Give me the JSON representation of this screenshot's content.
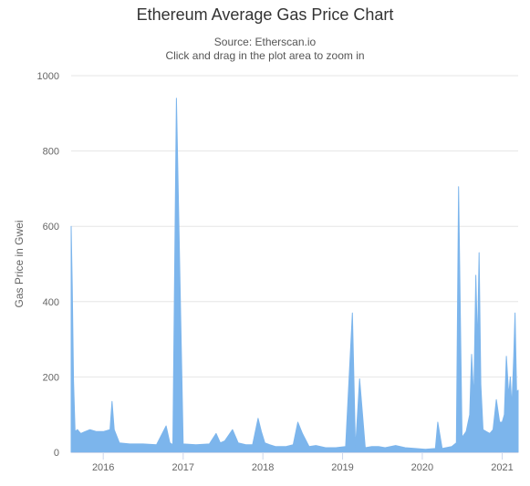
{
  "chart_data": {
    "type": "area",
    "title": "Ethereum Average Gas Price Chart",
    "subtitle": [
      "Source: Etherscan.io",
      "Click and drag in the plot area to zoom in"
    ],
    "xlabel": "",
    "ylabel": "Gas Price in Gwei",
    "ylim": [
      0,
      1000
    ],
    "yticks": [
      0,
      200,
      400,
      600,
      800,
      1000
    ],
    "xlim": [
      "2015-08-07",
      "2021-03-15"
    ],
    "xticks": [
      "2016",
      "2017",
      "2018",
      "2019",
      "2020",
      "2021"
    ],
    "grid": true,
    "legend": "none",
    "color": "#7cb5ec",
    "series": [
      {
        "x": [
          "2015-08-07",
          "2015-08-12",
          "2015-08-18",
          "2015-08-25",
          "2015-09-05",
          "2015-09-20",
          "2015-10-10",
          "2015-11-01",
          "2015-12-01",
          "2016-01-01",
          "2016-02-01",
          "2016-02-10",
          "2016-02-20",
          "2016-03-15",
          "2016-05-01",
          "2016-07-01",
          "2016-09-01",
          "2016-10-15",
          "2016-11-01",
          "2016-11-15",
          "2016-12-01",
          "2017-01-01",
          "2017-03-01",
          "2017-05-01",
          "2017-06-01",
          "2017-06-20",
          "2017-07-10",
          "2017-08-15",
          "2017-09-10",
          "2017-10-15",
          "2017-11-15",
          "2017-12-10",
          "2017-12-25",
          "2018-01-10",
          "2018-02-01",
          "2018-03-01",
          "2018-04-15",
          "2018-05-20",
          "2018-06-10",
          "2018-07-01",
          "2018-08-01",
          "2018-09-01",
          "2018-10-15",
          "2018-12-01",
          "2019-01-15",
          "2019-02-15",
          "2019-03-01",
          "2019-03-20",
          "2019-04-15",
          "2019-05-15",
          "2019-06-15",
          "2019-07-15",
          "2019-09-01",
          "2019-10-15",
          "2019-12-01",
          "2020-01-15",
          "2020-03-01",
          "2020-03-12",
          "2020-04-01",
          "2020-05-15",
          "2020-06-05",
          "2020-06-15",
          "2020-07-01",
          "2020-07-20",
          "2020-08-05",
          "2020-08-14",
          "2020-08-24",
          "2020-09-02",
          "2020-09-10",
          "2020-09-17",
          "2020-09-25",
          "2020-10-05",
          "2020-10-20",
          "2020-11-05",
          "2020-11-20",
          "2020-12-05",
          "2020-12-20",
          "2021-01-01",
          "2021-01-11",
          "2021-01-20",
          "2021-01-31",
          "2021-02-07",
          "2021-02-14",
          "2021-02-23",
          "2021-03-01",
          "2021-03-08",
          "2021-03-15"
        ],
        "y": [
          600,
          440,
          190,
          55,
          60,
          50,
          55,
          60,
          55,
          55,
          60,
          135,
          60,
          25,
          22,
          22,
          20,
          70,
          25,
          20,
          940,
          22,
          20,
          22,
          50,
          25,
          30,
          60,
          25,
          20,
          20,
          90,
          55,
          25,
          20,
          15,
          15,
          20,
          80,
          50,
          15,
          18,
          12,
          12,
          15,
          370,
          10,
          195,
          12,
          15,
          15,
          12,
          18,
          12,
          10,
          8,
          10,
          80,
          10,
          15,
          25,
          705,
          40,
          55,
          100,
          260,
          140,
          470,
          280,
          530,
          180,
          60,
          55,
          50,
          60,
          140,
          80,
          80,
          100,
          255,
          150,
          200,
          120,
          255,
          370,
          160,
          165
        ]
      }
    ]
  }
}
